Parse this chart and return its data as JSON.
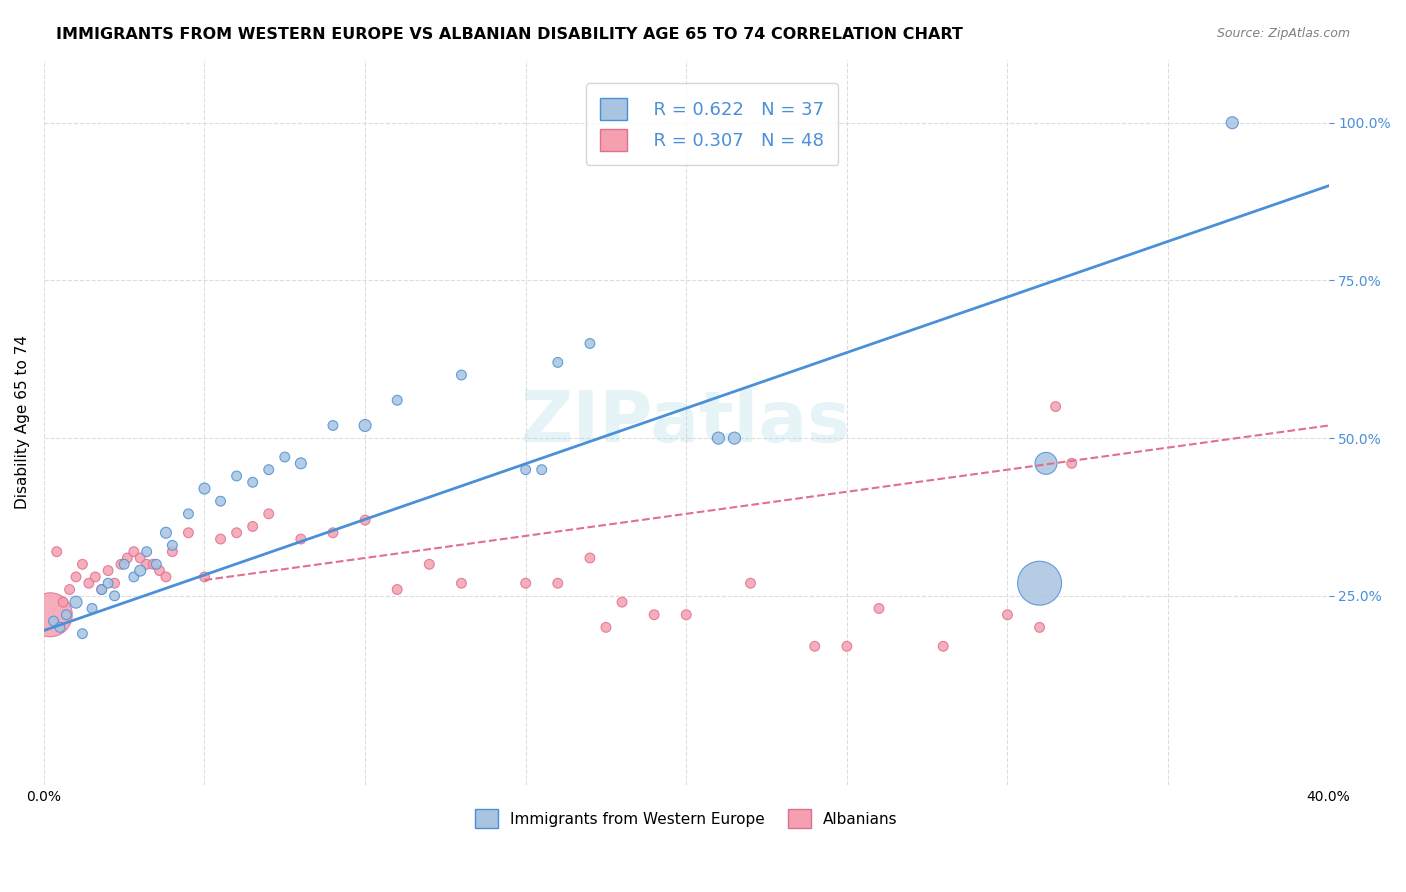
{
  "title": "IMMIGRANTS FROM WESTERN EUROPE VS ALBANIAN DISABILITY AGE 65 TO 74 CORRELATION CHART",
  "source": "Source: ZipAtlas.com",
  "xlabel": "",
  "ylabel": "Disability Age 65 to 74",
  "xlim": [
    0.0,
    0.4
  ],
  "ylim": [
    -0.05,
    1.1
  ],
  "x_ticks": [
    0.0,
    0.05,
    0.1,
    0.15,
    0.2,
    0.25,
    0.3,
    0.35,
    0.4
  ],
  "x_tick_labels": [
    "0.0%",
    "",
    "",
    "",
    "",
    "",
    "",
    "",
    "40.0%"
  ],
  "y_ticks": [
    0.25,
    0.5,
    0.75,
    1.0
  ],
  "y_tick_labels": [
    "25.0%",
    "50.0%",
    "75.0%",
    "100.0%"
  ],
  "legend_r1": "R = 0.622",
  "legend_n1": "N = 37",
  "legend_r2": "R = 0.307",
  "legend_n2": "N = 48",
  "color_blue": "#a8c4e0",
  "color_pink": "#f4a0b0",
  "color_blue_dark": "#4a90d9",
  "color_pink_dark": "#e07090",
  "color_line_blue": "#4a90d9",
  "color_line_pink": "#e07090",
  "blue_scatter_x": [
    0.003,
    0.005,
    0.007,
    0.01,
    0.012,
    0.015,
    0.018,
    0.02,
    0.022,
    0.025,
    0.028,
    0.03,
    0.032,
    0.035,
    0.038,
    0.04,
    0.045,
    0.05,
    0.055,
    0.06,
    0.065,
    0.07,
    0.075,
    0.08,
    0.09,
    0.1,
    0.11,
    0.13,
    0.15,
    0.155,
    0.16,
    0.17,
    0.21,
    0.215,
    0.31,
    0.312,
    0.37
  ],
  "blue_scatter_y": [
    0.21,
    0.2,
    0.22,
    0.24,
    0.19,
    0.23,
    0.26,
    0.27,
    0.25,
    0.3,
    0.28,
    0.29,
    0.32,
    0.3,
    0.35,
    0.33,
    0.38,
    0.42,
    0.4,
    0.44,
    0.43,
    0.45,
    0.47,
    0.46,
    0.52,
    0.52,
    0.56,
    0.6,
    0.45,
    0.45,
    0.62,
    0.65,
    0.5,
    0.5,
    0.27,
    0.46,
    1.0
  ],
  "blue_scatter_size": [
    20,
    20,
    20,
    30,
    20,
    20,
    20,
    20,
    20,
    20,
    20,
    25,
    20,
    20,
    25,
    20,
    20,
    25,
    20,
    20,
    20,
    20,
    20,
    25,
    20,
    30,
    20,
    20,
    20,
    20,
    20,
    20,
    30,
    30,
    400,
    100,
    30
  ],
  "pink_scatter_x": [
    0.002,
    0.004,
    0.006,
    0.008,
    0.01,
    0.012,
    0.014,
    0.016,
    0.018,
    0.02,
    0.022,
    0.024,
    0.026,
    0.028,
    0.03,
    0.032,
    0.034,
    0.036,
    0.038,
    0.04,
    0.045,
    0.05,
    0.055,
    0.06,
    0.065,
    0.07,
    0.08,
    0.09,
    0.1,
    0.11,
    0.12,
    0.13,
    0.15,
    0.16,
    0.17,
    0.175,
    0.18,
    0.19,
    0.2,
    0.22,
    0.24,
    0.25,
    0.26,
    0.28,
    0.3,
    0.31,
    0.315,
    0.32
  ],
  "pink_scatter_y": [
    0.22,
    0.32,
    0.24,
    0.26,
    0.28,
    0.3,
    0.27,
    0.28,
    0.26,
    0.29,
    0.27,
    0.3,
    0.31,
    0.32,
    0.31,
    0.3,
    0.3,
    0.29,
    0.28,
    0.32,
    0.35,
    0.28,
    0.34,
    0.35,
    0.36,
    0.38,
    0.34,
    0.35,
    0.37,
    0.26,
    0.3,
    0.27,
    0.27,
    0.27,
    0.31,
    0.2,
    0.24,
    0.22,
    0.22,
    0.27,
    0.17,
    0.17,
    0.23,
    0.17,
    0.22,
    0.2,
    0.55,
    0.46
  ],
  "pink_scatter_size": [
    400,
    20,
    20,
    20,
    20,
    20,
    20,
    20,
    20,
    20,
    20,
    20,
    20,
    20,
    20,
    20,
    20,
    20,
    20,
    20,
    20,
    20,
    20,
    20,
    20,
    20,
    20,
    20,
    20,
    20,
    20,
    20,
    20,
    20,
    20,
    20,
    20,
    20,
    20,
    20,
    20,
    20,
    20,
    20,
    20,
    20,
    20,
    20
  ],
  "blue_line_x": [
    0.0,
    0.4
  ],
  "blue_line_y": [
    0.195,
    0.9
  ],
  "pink_line_x": [
    0.05,
    0.4
  ],
  "pink_line_y": [
    0.275,
    0.52
  ],
  "legend_label_blue": "Immigrants from Western Europe",
  "legend_label_pink": "Albanians",
  "watermark": "ZIPatlas",
  "background_color": "#ffffff",
  "grid_color": "#dddddd"
}
